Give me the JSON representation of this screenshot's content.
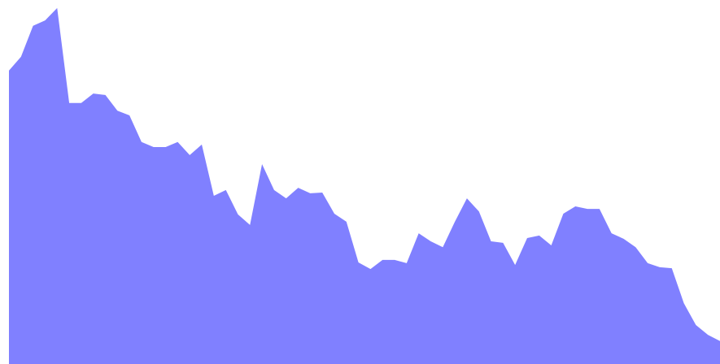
{
  "chart_data": {
    "type": "area",
    "title": "",
    "xlabel": "",
    "ylabel": "",
    "grid": false,
    "legend": "none",
    "ylim": [
      0,
      100
    ],
    "series": [
      {
        "color": "#8080ff",
        "values": [
          80.6,
          84.4,
          92.9,
          94.4,
          97.8,
          71.7,
          71.7,
          74.3,
          73.9,
          69.6,
          68.3,
          61.0,
          59.6,
          59.6,
          61.0,
          57.4,
          60.3,
          46.2,
          47.8,
          41.1,
          38.2,
          54.9,
          47.8,
          45.5,
          48.4,
          46.9,
          47.1,
          41.3,
          39.1,
          27.9,
          26.1,
          28.6,
          28.6,
          27.7,
          35.9,
          33.7,
          32.1,
          39.1,
          45.5,
          41.9,
          33.7,
          33.3,
          27.2,
          34.6,
          35.3,
          32.6,
          41.3,
          43.3,
          42.6,
          42.6,
          35.9,
          34.4,
          32.1,
          27.7,
          26.6,
          26.3,
          16.7,
          10.7,
          8.0,
          6.3
        ]
      }
    ]
  }
}
